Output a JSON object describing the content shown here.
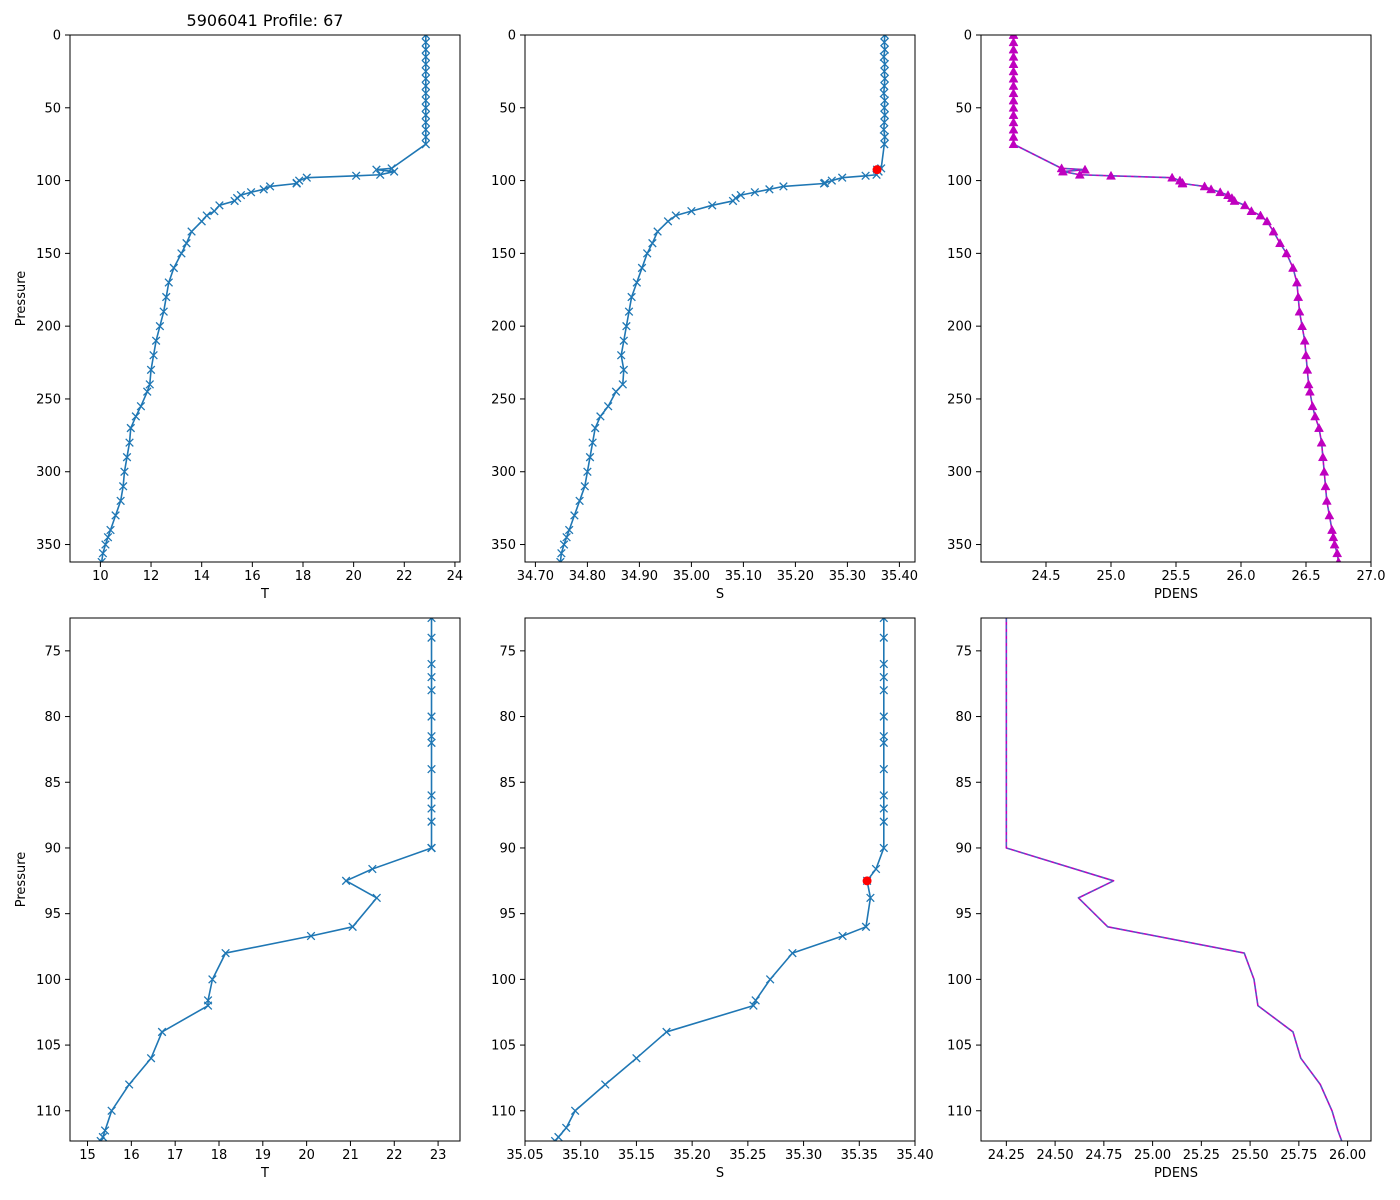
{
  "figure_title": "5906041 Profile: 67",
  "colors": {
    "line": "#1f77b4",
    "dens": "#bf00bf",
    "dens_dash": "#3b6fc4",
    "marker": "#ff0000"
  },
  "chart_data": [
    {
      "type": "line",
      "id": "t_full",
      "xlabel": "T",
      "ylabel": "Pressure",
      "xlim": [
        8.8,
        24.2
      ],
      "ylim": [
        362,
        0
      ],
      "y_inverted": true,
      "xticks": [
        10,
        12,
        14,
        16,
        18,
        20,
        22,
        24
      ],
      "yticks": [
        0,
        50,
        100,
        150,
        200,
        250,
        300,
        350
      ],
      "series": [
        {
          "name": "T",
          "marker": "x",
          "x": [
            22.85,
            22.85,
            22.85,
            22.85,
            22.85,
            22.85,
            22.85,
            22.85,
            22.85,
            22.85,
            22.85,
            22.85,
            22.85,
            22.85,
            22.85,
            22.85,
            21.5,
            20.9,
            21.6,
            21.05,
            20.1,
            18.15,
            17.85,
            17.75,
            17.75,
            16.7,
            16.45,
            15.95,
            15.55,
            15.4,
            15.3,
            14.7,
            14.5,
            14.2,
            14.0,
            13.6,
            13.4,
            13.2,
            12.9,
            12.7,
            12.6,
            12.5,
            12.35,
            12.2,
            12.1,
            12.0,
            11.95,
            11.85,
            11.6,
            11.4,
            11.2,
            11.15,
            11.05,
            10.95,
            10.9,
            10.8,
            10.6,
            10.4,
            10.3,
            10.2,
            10.1,
            10.05
          ],
          "y": [
            0,
            5,
            10,
            15,
            20,
            25,
            30,
            35,
            40,
            45,
            50,
            55,
            60,
            65,
            70,
            75,
            91.6,
            92.5,
            93.8,
            96,
            96.7,
            98,
            100,
            101.6,
            102,
            104,
            106,
            108,
            110,
            112,
            114,
            117,
            121,
            124,
            128,
            135,
            143,
            150,
            160,
            170,
            180,
            190,
            200,
            210,
            220,
            230,
            240,
            245,
            255,
            262,
            270,
            280,
            290,
            300,
            310,
            320,
            330,
            340,
            345,
            350,
            356,
            362
          ]
        }
      ]
    },
    {
      "type": "line",
      "id": "s_full",
      "xlabel": "S",
      "ylabel": "",
      "xlim": [
        34.68,
        35.43
      ],
      "ylim": [
        362,
        0
      ],
      "y_inverted": true,
      "xticks": [
        34.7,
        34.8,
        34.9,
        35.0,
        35.1,
        35.2,
        35.3,
        35.4
      ],
      "yticks": [
        0,
        50,
        100,
        150,
        200,
        250,
        300,
        350
      ],
      "series": [
        {
          "name": "S",
          "marker": "x",
          "x": [
            35.372,
            35.371,
            35.372,
            35.37,
            35.372,
            35.371,
            35.372,
            35.371,
            35.37,
            35.372,
            35.371,
            35.372,
            35.371,
            35.37,
            35.372,
            35.371,
            35.365,
            35.357,
            35.36,
            35.356,
            35.335,
            35.29,
            35.27,
            35.257,
            35.255,
            35.177,
            35.15,
            35.122,
            35.095,
            35.085,
            35.08,
            35.04,
            35.0,
            34.97,
            34.955,
            34.935,
            34.925,
            34.915,
            34.905,
            34.895,
            34.885,
            34.88,
            34.875,
            34.87,
            34.865,
            34.87,
            34.868,
            34.855,
            34.84,
            34.825,
            34.815,
            34.81,
            34.805,
            34.8,
            34.795,
            34.785,
            34.775,
            34.765,
            34.76,
            34.755,
            34.75,
            34.748
          ],
          "y": [
            0,
            5,
            10,
            15,
            20,
            25,
            30,
            35,
            40,
            45,
            50,
            55,
            60,
            65,
            70,
            75,
            91.6,
            92.5,
            93.8,
            96,
            96.7,
            98,
            100,
            101.6,
            102,
            104,
            106,
            108,
            110,
            112,
            114,
            117,
            121,
            124,
            128,
            135,
            143,
            150,
            160,
            170,
            180,
            190,
            200,
            210,
            220,
            230,
            240,
            245,
            255,
            262,
            270,
            280,
            290,
            300,
            310,
            320,
            330,
            340,
            345,
            350,
            356,
            362
          ]
        }
      ],
      "highlight_point": {
        "x": 35.357,
        "y": 92.5
      }
    },
    {
      "type": "line",
      "id": "pdens_full",
      "xlabel": "PDENS",
      "ylabel": "",
      "xlim": [
        24.0,
        27.0
      ],
      "ylim": [
        362,
        0
      ],
      "y_inverted": true,
      "xticks": [
        24.5,
        25.0,
        25.5,
        26.0,
        26.5,
        27.0
      ],
      "yticks": [
        0,
        50,
        100,
        150,
        200,
        250,
        300,
        350
      ],
      "series": [
        {
          "name": "PDENS",
          "marker": "triangle",
          "x": [
            24.25,
            24.25,
            24.25,
            24.25,
            24.25,
            24.25,
            24.25,
            24.25,
            24.25,
            24.25,
            24.25,
            24.25,
            24.25,
            24.25,
            24.25,
            24.25,
            24.62,
            24.8,
            24.63,
            24.76,
            25.0,
            25.47,
            25.53,
            25.55,
            25.55,
            25.72,
            25.77,
            25.84,
            25.9,
            25.93,
            25.95,
            26.03,
            26.08,
            26.15,
            26.2,
            26.25,
            26.3,
            26.35,
            26.4,
            26.43,
            26.44,
            26.45,
            26.47,
            26.49,
            26.5,
            26.51,
            26.52,
            26.53,
            26.55,
            26.57,
            26.6,
            26.62,
            26.63,
            26.64,
            26.65,
            26.66,
            26.68,
            26.7,
            26.71,
            26.72,
            26.74,
            26.75
          ],
          "y": [
            0,
            5,
            10,
            15,
            20,
            25,
            30,
            35,
            40,
            45,
            50,
            55,
            60,
            65,
            70,
            75,
            91.6,
            92.5,
            93.8,
            96,
            96.7,
            98,
            100,
            101.6,
            102,
            104,
            106,
            108,
            110,
            112,
            114,
            117,
            121,
            124,
            128,
            135,
            143,
            150,
            160,
            170,
            180,
            190,
            200,
            210,
            220,
            230,
            240,
            245,
            255,
            262,
            270,
            280,
            290,
            300,
            310,
            320,
            330,
            340,
            345,
            350,
            356,
            362
          ]
        }
      ]
    },
    {
      "type": "line",
      "id": "t_zoom",
      "xlabel": "T",
      "ylabel": "Pressure",
      "xlim": [
        14.6,
        23.5
      ],
      "ylim": [
        112.3,
        72.5
      ],
      "y_inverted": true,
      "xticks": [
        15,
        16,
        17,
        18,
        19,
        20,
        21,
        22,
        23
      ],
      "yticks": [
        75,
        80,
        85,
        90,
        95,
        100,
        105,
        110
      ],
      "series": [
        {
          "name": "T",
          "marker": "x",
          "x": [
            22.85,
            22.85,
            22.85,
            22.85,
            22.85,
            22.85,
            22.85,
            22.85,
            22.85,
            22.85,
            22.85,
            22.85,
            22.85,
            22.85,
            22.85,
            21.5,
            20.9,
            21.6,
            21.05,
            20.1,
            18.15,
            17.85,
            17.75,
            17.75,
            16.7,
            16.45,
            15.95,
            15.55,
            15.4,
            15.35,
            15.3
          ],
          "y": [
            72.5,
            74,
            76,
            77,
            78,
            80,
            81.5,
            82,
            84,
            86,
            87,
            88,
            90,
            90,
            90,
            91.6,
            92.5,
            93.8,
            96,
            96.7,
            98,
            100,
            101.6,
            102,
            104,
            106,
            108,
            110,
            111.5,
            112,
            112.3
          ]
        }
      ]
    },
    {
      "type": "line",
      "id": "s_zoom",
      "xlabel": "S",
      "ylabel": "",
      "xlim": [
        35.05,
        35.4
      ],
      "ylim": [
        112.3,
        72.5
      ],
      "y_inverted": true,
      "xticks": [
        35.05,
        35.1,
        35.15,
        35.2,
        35.25,
        35.3,
        35.35,
        35.4
      ],
      "yticks": [
        75,
        80,
        85,
        90,
        95,
        100,
        105,
        110
      ],
      "series": [
        {
          "name": "S",
          "marker": "x",
          "x": [
            35.372,
            35.372,
            35.372,
            35.372,
            35.372,
            35.372,
            35.372,
            35.372,
            35.372,
            35.372,
            35.372,
            35.372,
            35.372,
            35.365,
            35.357,
            35.36,
            35.356,
            35.335,
            35.29,
            35.27,
            35.257,
            35.255,
            35.177,
            35.15,
            35.122,
            35.095,
            35.087,
            35.08,
            35.077
          ],
          "y": [
            72.5,
            74,
            76,
            77,
            78,
            80,
            81.5,
            82,
            84,
            86,
            87,
            88,
            90,
            91.6,
            92.5,
            93.8,
            96,
            96.7,
            98,
            100,
            101.6,
            102,
            104,
            106,
            108,
            110,
            111.3,
            112,
            112.3
          ]
        }
      ],
      "highlight_point": {
        "x": 35.357,
        "y": 92.5
      }
    },
    {
      "type": "line",
      "id": "pdens_zoom",
      "xlabel": "PDENS",
      "ylabel": "",
      "xlim": [
        24.12,
        26.12
      ],
      "ylim": [
        112.3,
        72.5
      ],
      "y_inverted": true,
      "xticks": [
        24.25,
        24.5,
        24.75,
        25.0,
        25.25,
        25.5,
        25.75,
        26.0
      ],
      "yticks": [
        75,
        80,
        85,
        90,
        95,
        100,
        105,
        110
      ],
      "series": [
        {
          "name": "PDENS",
          "marker": "none",
          "x": [
            24.25,
            24.25,
            24.25,
            24.8,
            24.62,
            24.77,
            25.47,
            25.52,
            25.54,
            25.72,
            25.76,
            25.86,
            25.92,
            25.95,
            25.97
          ],
          "y": [
            72.5,
            80,
            90,
            92.5,
            93.8,
            96,
            98,
            100,
            102,
            104,
            106,
            108,
            110,
            111.5,
            112.3
          ]
        }
      ]
    }
  ]
}
